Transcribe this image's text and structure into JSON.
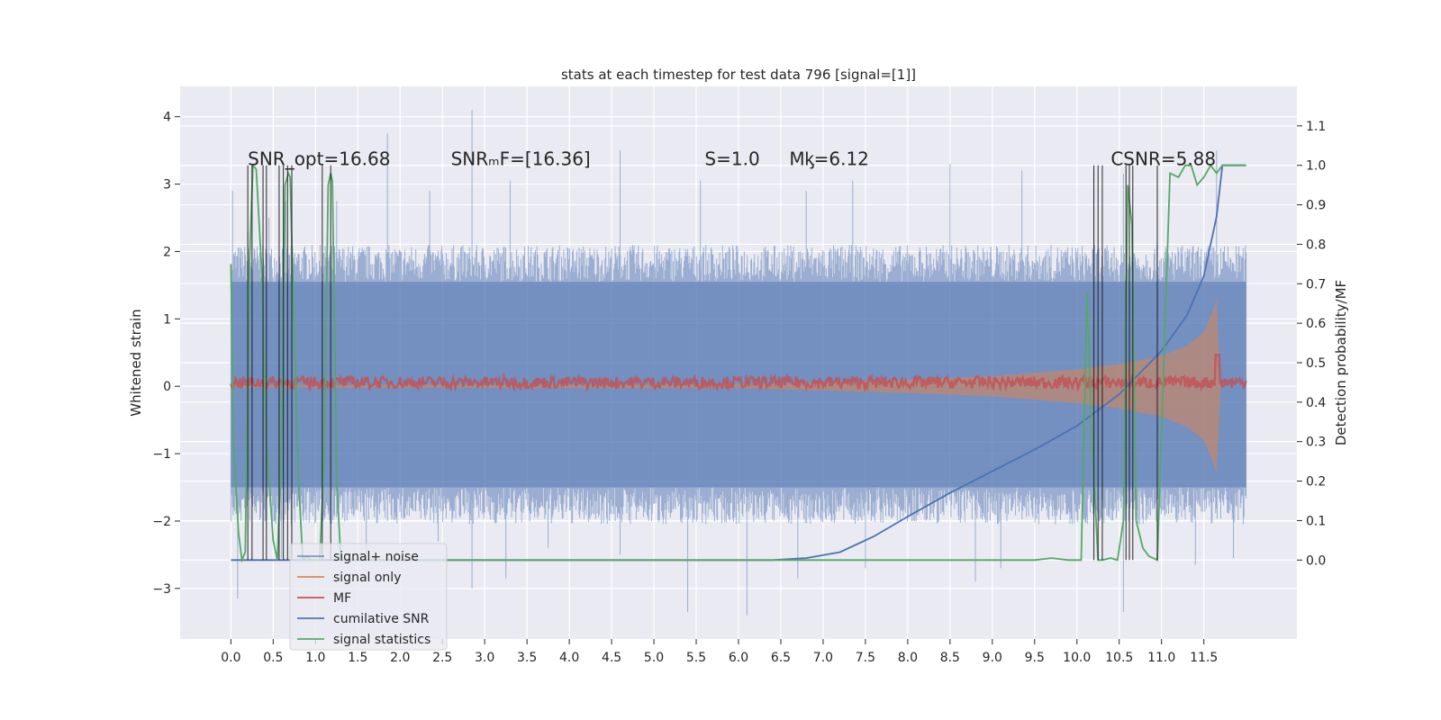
{
  "chart_data": {
    "type": "line",
    "title": "stats at each timestep for test data 796 [signal=[1]]",
    "xlabel": "",
    "ylabel": "Whitened strain",
    "ylabel_right": "Detection probability/MF",
    "xlim": [
      -0.6,
      12.6
    ],
    "ylim_left": [
      -3.75,
      4.45
    ],
    "ylim_right": [
      -0.2,
      1.2
    ],
    "x_ticks": [
      0.0,
      0.5,
      1.0,
      1.5,
      2.0,
      2.5,
      3.0,
      3.5,
      4.0,
      4.5,
      5.0,
      5.5,
      6.0,
      6.5,
      7.0,
      7.5,
      8.0,
      8.5,
      9.0,
      9.5,
      10.0,
      10.5,
      11.0,
      11.5
    ],
    "x_tick_labels": [
      "0.0",
      "0.5",
      "1.0",
      "1.5",
      "2.0",
      "2.5",
      "3.0",
      "3.5",
      "4.0",
      "4.5",
      "5.0",
      "5.5",
      "6.0",
      "6.5",
      "7.0",
      "7.5",
      "8.0",
      "8.5",
      "9.0",
      "9.5",
      "10.0",
      "10.5",
      "11.0",
      "11.5"
    ],
    "y_ticks_left": [
      -3,
      -2,
      -1,
      0,
      1,
      2,
      3,
      4
    ],
    "y_tick_labels_left": [
      "−3",
      "−2",
      "−1",
      "0",
      "1",
      "2",
      "3",
      "4"
    ],
    "y_ticks_right": [
      0.0,
      0.1,
      0.2,
      0.3,
      0.4,
      0.5,
      0.6,
      0.7,
      0.8,
      0.9,
      1.0,
      1.1
    ],
    "y_tick_labels_right": [
      "0.0",
      "0.1",
      "0.2",
      "0.3",
      "0.4",
      "0.5",
      "0.6",
      "0.7",
      "0.8",
      "0.9",
      "1.0",
      "1.1"
    ],
    "grid": true,
    "legend_position": "lower-left",
    "annotations": [
      {
        "text": "SNR_opt=16.68",
        "x": 0.2,
        "y_right": 1.0
      },
      {
        "text": "SNRₘF=[16.36]",
        "x": 2.6,
        "y_right": 1.0
      },
      {
        "text": "S=1.0",
        "x": 5.6,
        "y_right": 1.0
      },
      {
        "text": "Mᶄ=6.12",
        "x": 6.6,
        "y_right": 1.0
      },
      {
        "text": "CSNR=5.88",
        "x": 10.4,
        "y_right": 1.0
      }
    ],
    "series": [
      {
        "name": "signal+ noise",
        "axis": "left",
        "color": "#4c72b0",
        "x_range": [
          0.0,
          12.0
        ],
        "band_left": [
          -1.5,
          1.55
        ],
        "peaks_up": [
          [
            0.02,
            2.9
          ],
          [
            0.2,
            2.3
          ],
          [
            0.45,
            2.5
          ],
          [
            0.65,
            2.75
          ],
          [
            1.25,
            2.75
          ],
          [
            1.85,
            3.75
          ],
          [
            2.85,
            4.1
          ],
          [
            2.35,
            2.9
          ],
          [
            3.3,
            3.05
          ],
          [
            4.6,
            3.5
          ],
          [
            5.55,
            3.05
          ],
          [
            6.8,
            2.9
          ],
          [
            7.35,
            3.05
          ],
          [
            8.5,
            3.3
          ],
          [
            9.35,
            3.2
          ],
          [
            10.2,
            3.2
          ],
          [
            10.55,
            3.15
          ],
          [
            11.65,
            3.5
          ],
          [
            12.0,
            2.0
          ]
        ],
        "peaks_down": [
          [
            0.08,
            -3.15
          ],
          [
            0.6,
            -2.55
          ],
          [
            1.6,
            -2.5
          ],
          [
            2.45,
            -2.3
          ],
          [
            2.85,
            -3.0
          ],
          [
            3.25,
            -2.85
          ],
          [
            3.75,
            -2.4
          ],
          [
            4.6,
            -2.5
          ],
          [
            5.4,
            -3.35
          ],
          [
            6.1,
            -3.4
          ],
          [
            6.7,
            -2.85
          ],
          [
            7.5,
            -2.7
          ],
          [
            8.8,
            -2.9
          ],
          [
            9.1,
            -2.7
          ],
          [
            10.55,
            -3.35
          ],
          [
            11.4,
            -2.65
          ],
          [
            11.85,
            -2.55
          ]
        ]
      },
      {
        "name": "signal only",
        "axis": "left",
        "color": "#dd8452",
        "x": [
          0.0,
          6.0,
          7.0,
          8.0,
          9.0,
          10.0,
          10.5,
          11.0,
          11.3,
          11.5,
          11.6,
          11.65,
          11.7,
          12.0
        ],
        "amplitude": [
          0.02,
          0.03,
          0.06,
          0.1,
          0.15,
          0.25,
          0.33,
          0.45,
          0.6,
          0.8,
          1.1,
          1.3,
          0.0,
          0.0
        ]
      },
      {
        "name": "MF",
        "axis": "right",
        "color": "#c44e52",
        "x_range": [
          0.0,
          12.0
        ],
        "center_right": 0.45,
        "jitter_right": 0.015,
        "spike": [
          11.66,
          0.52
        ]
      },
      {
        "name": "cumilative SNR",
        "axis": "right",
        "color": "#4c72b0",
        "x": [
          0.0,
          6.4,
          6.8,
          7.2,
          7.6,
          8.0,
          8.5,
          9.0,
          9.5,
          10.0,
          10.5,
          11.0,
          11.3,
          11.5,
          11.65,
          11.72,
          12.0
        ],
        "y": [
          0.0,
          0.0,
          0.005,
          0.02,
          0.06,
          0.11,
          0.17,
          0.225,
          0.28,
          0.34,
          0.42,
          0.53,
          0.62,
          0.72,
          0.87,
          1.0,
          1.0
        ]
      },
      {
        "name": "signal statistics",
        "axis": "right",
        "color": "#55a868",
        "x": [
          0.0,
          0.03,
          0.09,
          0.13,
          0.17,
          0.22,
          0.26,
          0.3,
          0.36,
          0.42,
          0.5,
          0.55,
          0.6,
          0.64,
          0.68,
          0.7,
          0.74,
          0.8,
          0.85,
          0.9,
          0.95,
          1.05,
          1.1,
          1.15,
          1.18,
          1.2,
          1.25,
          1.3,
          1.4,
          5.0,
          9.5,
          9.7,
          9.9,
          10.05,
          10.12,
          10.18,
          10.25,
          10.3,
          10.4,
          10.48,
          10.55,
          10.6,
          10.65,
          10.7,
          10.78,
          10.85,
          10.95,
          11.1,
          11.2,
          11.28,
          11.35,
          11.42,
          11.5,
          11.58,
          11.65,
          11.72,
          12.0
        ],
        "y": [
          0.75,
          0.3,
          0.07,
          0.0,
          0.02,
          0.75,
          1.0,
          0.99,
          0.75,
          0.3,
          0.05,
          0.0,
          0.3,
          0.95,
          0.98,
          0.97,
          0.65,
          0.2,
          0.0,
          0.01,
          0.0,
          0.0,
          0.25,
          0.95,
          0.98,
          0.96,
          0.2,
          0.0,
          0.0,
          0.0,
          0.0,
          0.005,
          0.0,
          0.0,
          0.68,
          0.3,
          0.0,
          0.0,
          0.005,
          0.0,
          0.1,
          0.95,
          0.85,
          0.1,
          0.03,
          0.01,
          0.0,
          0.98,
          0.97,
          1.0,
          1.0,
          0.95,
          0.97,
          1.0,
          0.98,
          1.0,
          1.0
        ]
      }
    ],
    "vertical_lines": [
      0.2,
      0.25,
      0.38,
      0.42,
      0.57,
      0.62,
      0.67,
      0.72,
      1.08,
      1.18,
      10.2,
      10.25,
      10.3,
      10.58,
      10.62,
      10.66,
      10.95
    ]
  }
}
